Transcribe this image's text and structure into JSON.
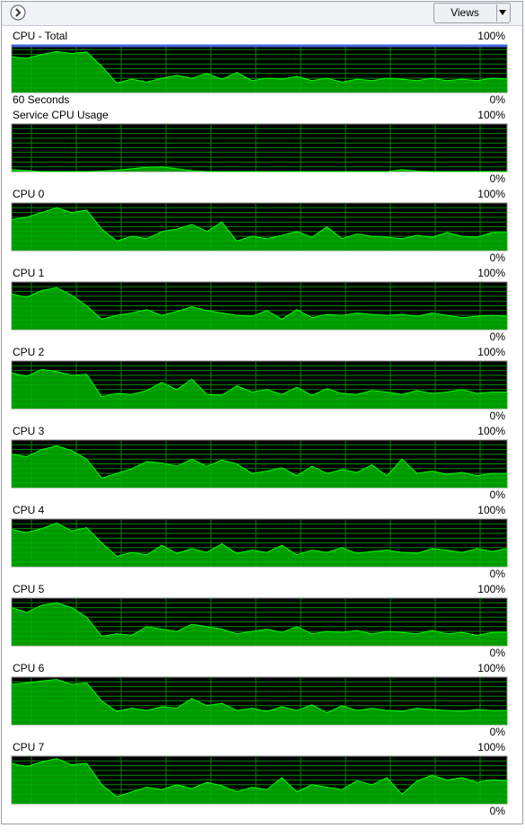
{
  "toolbar": {
    "views": "Views"
  },
  "time_span": "60 Seconds",
  "graph_style": {
    "background": "#000000",
    "grid": "#008a00",
    "fill": "#00b400",
    "line": "#00ff00",
    "max_frequency_color": "#4466dd"
  },
  "graphs": [
    {
      "title": "CPU - Total",
      "ylim": [
        0,
        100
      ],
      "yticks": [
        {
          "value": 0,
          "label": "0%"
        },
        {
          "value": 100,
          "label": "100%"
        }
      ],
      "max_frequency": 100,
      "values": [
        75,
        72,
        80,
        86,
        82,
        85,
        55,
        20,
        28,
        22,
        30,
        36,
        30,
        40,
        28,
        42,
        25,
        30,
        28,
        34,
        25,
        30,
        22,
        28,
        25,
        30,
        28,
        25,
        30,
        25,
        28,
        25,
        30,
        28
      ]
    },
    {
      "title": "Service CPU Usage",
      "ylim": [
        0,
        100
      ],
      "yticks": [
        {
          "value": 0,
          "label": "0%"
        },
        {
          "value": 100,
          "label": "100%"
        }
      ],
      "values": [
        4,
        2,
        0,
        0,
        0,
        0,
        1,
        3,
        6,
        9,
        10,
        6,
        2,
        0,
        0,
        0,
        0,
        0,
        0,
        0,
        0,
        0,
        0,
        0,
        0,
        0,
        4,
        1,
        0,
        0,
        0,
        0,
        0,
        0
      ]
    },
    {
      "title": "CPU 0",
      "ylim": [
        0,
        100
      ],
      "yticks": [
        {
          "value": 0,
          "label": "0%"
        },
        {
          "value": 100,
          "label": "100%"
        }
      ],
      "values": [
        65,
        70,
        80,
        90,
        80,
        85,
        45,
        20,
        30,
        25,
        40,
        45,
        55,
        40,
        60,
        20,
        30,
        25,
        32,
        40,
        28,
        50,
        25,
        35,
        30,
        28,
        25,
        32,
        28,
        38,
        30,
        28,
        38,
        38
      ]
    },
    {
      "title": "CPU 1",
      "ylim": [
        0,
        100
      ],
      "yticks": [
        {
          "value": 0,
          "label": "0%"
        },
        {
          "value": 100,
          "label": "100%"
        }
      ],
      "values": [
        75,
        68,
        82,
        88,
        72,
        50,
        22,
        30,
        35,
        42,
        30,
        38,
        48,
        40,
        35,
        30,
        28,
        40,
        22,
        42,
        25,
        32,
        30,
        35,
        32,
        30,
        32,
        28,
        35,
        30,
        25,
        28,
        30,
        28
      ]
    },
    {
      "title": "CPU 2",
      "ylim": [
        0,
        100
      ],
      "yticks": [
        {
          "value": 0,
          "label": "0%"
        },
        {
          "value": 100,
          "label": "100%"
        }
      ],
      "values": [
        75,
        68,
        82,
        78,
        70,
        72,
        25,
        32,
        30,
        38,
        55,
        40,
        62,
        30,
        28,
        48,
        35,
        40,
        30,
        45,
        28,
        42,
        32,
        30,
        38,
        35,
        30,
        38,
        32,
        35,
        40,
        32,
        35,
        35
      ]
    },
    {
      "title": "CPU 3",
      "ylim": [
        0,
        100
      ],
      "yticks": [
        {
          "value": 0,
          "label": "0%"
        },
        {
          "value": 100,
          "label": "100%"
        }
      ],
      "values": [
        70,
        65,
        80,
        88,
        78,
        60,
        20,
        30,
        40,
        55,
        52,
        45,
        60,
        45,
        58,
        50,
        30,
        35,
        42,
        25,
        45,
        30,
        38,
        32,
        48,
        25,
        60,
        30,
        35,
        28,
        32,
        25,
        30,
        30
      ]
    },
    {
      "title": "CPU 4",
      "ylim": [
        0,
        100
      ],
      "yticks": [
        {
          "value": 0,
          "label": "0%"
        },
        {
          "value": 100,
          "label": "100%"
        }
      ],
      "values": [
        78,
        72,
        80,
        92,
        75,
        82,
        50,
        22,
        30,
        25,
        45,
        28,
        38,
        30,
        48,
        28,
        35,
        30,
        45,
        25,
        35,
        30,
        40,
        28,
        32,
        35,
        30,
        28,
        38,
        35,
        30,
        38,
        32,
        38
      ]
    },
    {
      "title": "CPU 5",
      "ylim": [
        0,
        100
      ],
      "yticks": [
        {
          "value": 0,
          "label": "0%"
        },
        {
          "value": 100,
          "label": "100%"
        }
      ],
      "values": [
        80,
        70,
        85,
        90,
        80,
        60,
        20,
        25,
        22,
        40,
        35,
        30,
        45,
        40,
        35,
        25,
        30,
        35,
        28,
        40,
        25,
        30,
        28,
        32,
        25,
        30,
        28,
        25,
        32,
        25,
        28,
        22,
        28,
        28
      ]
    },
    {
      "title": "CPU 6",
      "ylim": [
        0,
        100
      ],
      "yticks": [
        {
          "value": 0,
          "label": "0%"
        },
        {
          "value": 100,
          "label": "100%"
        }
      ],
      "values": [
        85,
        88,
        92,
        95,
        85,
        88,
        50,
        28,
        35,
        30,
        38,
        35,
        55,
        40,
        45,
        30,
        35,
        28,
        38,
        30,
        42,
        25,
        40,
        30,
        35,
        30,
        28,
        35,
        32,
        30,
        28,
        32,
        30,
        30
      ]
    },
    {
      "title": "CPU 7",
      "ylim": [
        0,
        100
      ],
      "yticks": [
        {
          "value": 0,
          "label": "0%"
        },
        {
          "value": 100,
          "label": "100%"
        }
      ],
      "values": [
        85,
        78,
        88,
        95,
        82,
        85,
        40,
        15,
        25,
        35,
        30,
        40,
        32,
        45,
        38,
        25,
        35,
        30,
        55,
        25,
        40,
        35,
        30,
        48,
        40,
        55,
        20,
        48,
        60,
        50,
        55,
        45,
        50,
        48
      ]
    }
  ]
}
